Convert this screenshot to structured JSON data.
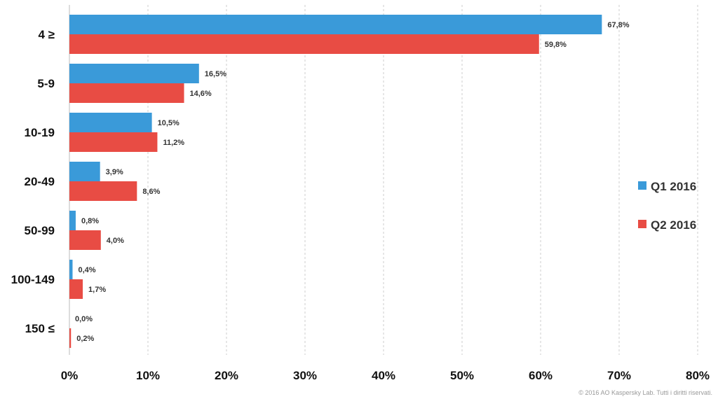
{
  "chart_data": {
    "type": "bar",
    "orientation": "horizontal",
    "categories": [
      "4 ≥",
      "5-9",
      "10-19",
      "20-49",
      "50-99",
      "100-149",
      "150 ≤"
    ],
    "series": [
      {
        "name": "Q1 2016",
        "color": "#3a9ad9",
        "values": [
          67.8,
          16.5,
          10.5,
          3.9,
          0.8,
          0.4,
          0.0
        ],
        "labels": [
          "67,8%",
          "16,5%",
          "10,5%",
          "3,9%",
          "0,8%",
          "0,4%",
          "0,0%"
        ]
      },
      {
        "name": "Q2 2016",
        "color": "#e84c44",
        "values": [
          59.8,
          14.6,
          11.2,
          8.6,
          4.0,
          1.7,
          0.2
        ],
        "labels": [
          "59,8%",
          "14,6%",
          "11,2%",
          "8,6%",
          "4,0%",
          "1,7%",
          "0,2%"
        ]
      }
    ],
    "xlim": [
      0,
      80
    ],
    "xticks": [
      "0%",
      "10%",
      "20%",
      "30%",
      "40%",
      "50%",
      "60%",
      "70%",
      "80%"
    ],
    "grid": "vertical dashed",
    "legend": "right",
    "title": "",
    "xlabel": "",
    "ylabel": ""
  },
  "footer": {
    "copyright": "© 2016 AO Kaspersky Lab. Tutti i diritti riservati."
  }
}
